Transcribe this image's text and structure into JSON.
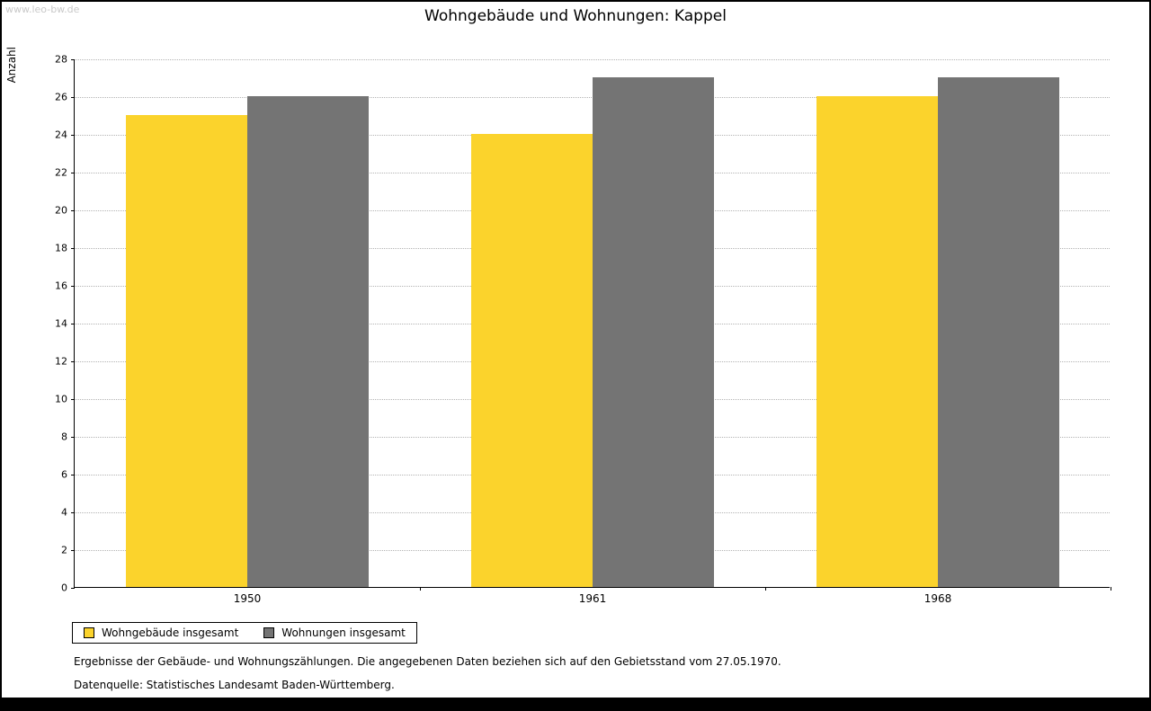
{
  "watermark": "www.leo-bw.de",
  "title": "Wohngebäude und Wohnungen: Kappel",
  "chart_data": {
    "type": "bar",
    "title": "Wohngebäude und Wohnungen: Kappel",
    "categories": [
      "1950",
      "1961",
      "1968"
    ],
    "series": [
      {
        "name": "Wohngebäude insgesamt",
        "color": "#FBD32C",
        "values": [
          25,
          24,
          26
        ]
      },
      {
        "name": "Wohnungen insgesamt",
        "color": "#747474",
        "values": [
          26,
          27,
          27
        ]
      }
    ],
    "xlabel": "",
    "ylabel": "Anzahl",
    "ylim": [
      0,
      28
    ],
    "yticks": [
      0,
      2,
      4,
      6,
      8,
      10,
      12,
      14,
      16,
      18,
      20,
      22,
      24,
      26,
      28
    ],
    "grid": true,
    "legend_position": "bottom-left"
  },
  "footer": {
    "note": "Ergebnisse der Gebäude- und Wohnungszählungen. Die angegebenen Daten beziehen sich auf den Gebietsstand vom 27.05.1970.",
    "source": "Datenquelle: Statistisches Landesamt Baden-Württemberg."
  }
}
